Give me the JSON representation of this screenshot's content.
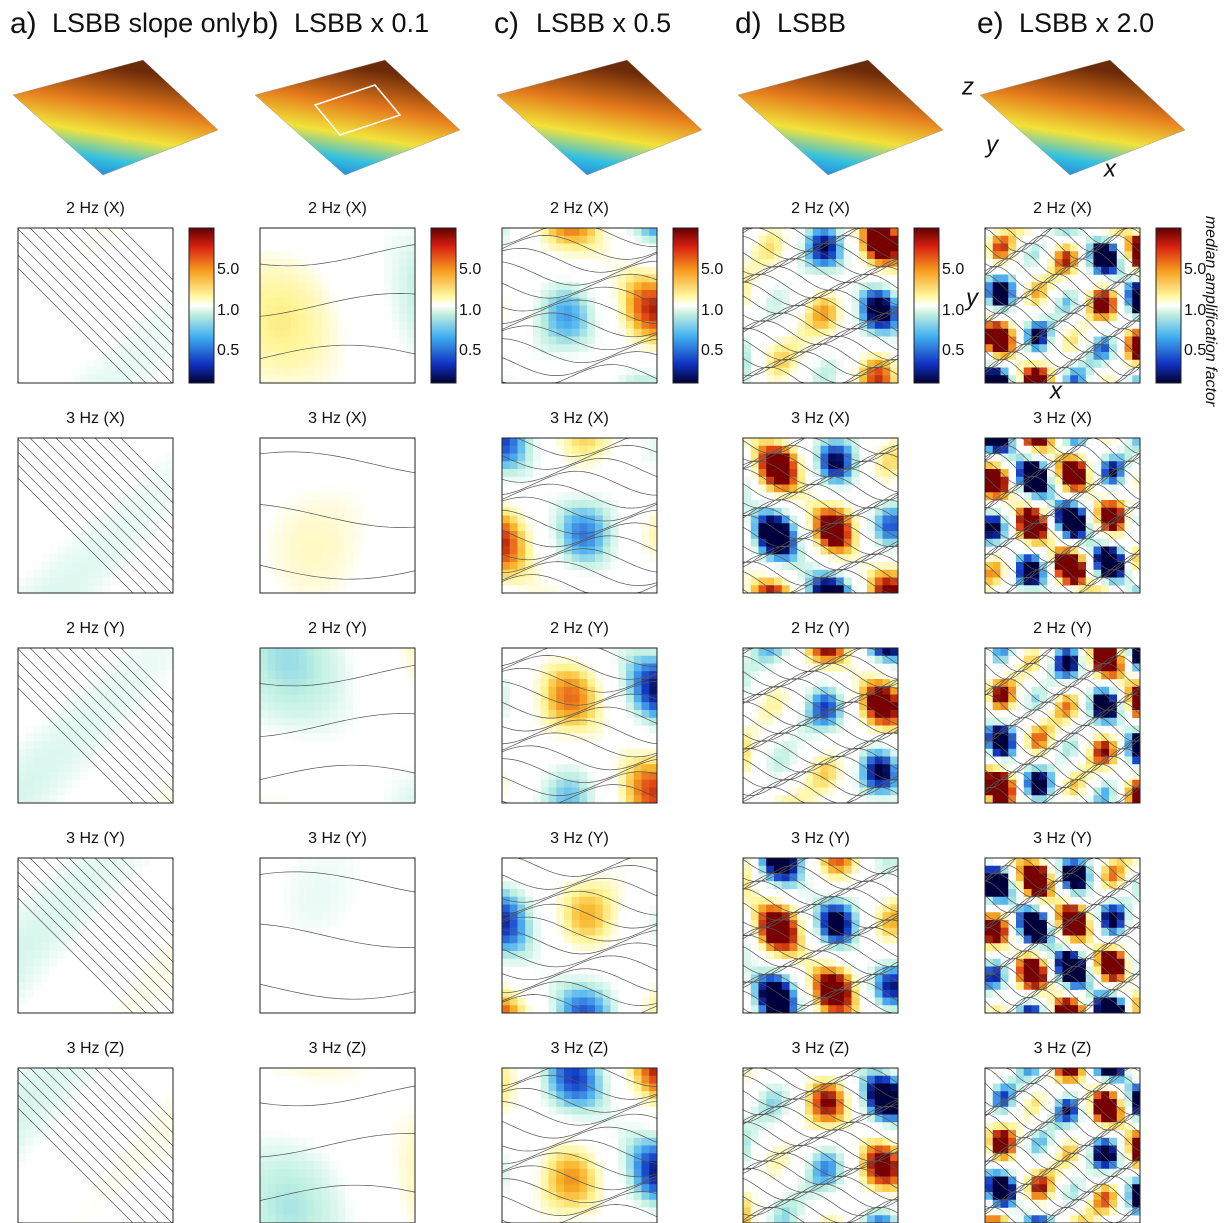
{
  "columns": [
    {
      "label": "a)",
      "title": "LSBB slope only"
    },
    {
      "label": "b)",
      "title": "LSBB x 0.1"
    },
    {
      "label": "c)",
      "title": "LSBB x 0.5"
    },
    {
      "label": "d)",
      "title": "LSBB"
    },
    {
      "label": "e)",
      "title": "LSBB x 2.0"
    }
  ],
  "panel_titles": [
    "2 Hz (X)",
    "3 Hz (X)",
    "2 Hz (Y)",
    "3 Hz (Y)",
    "3 Hz (Z)"
  ],
  "colorbar_ticks": [
    "5.0",
    "1.0",
    "0.5"
  ],
  "colorbar_label": "median amplification factor",
  "axis_labels": {
    "x": "x",
    "y": "y",
    "z": "z"
  }
}
